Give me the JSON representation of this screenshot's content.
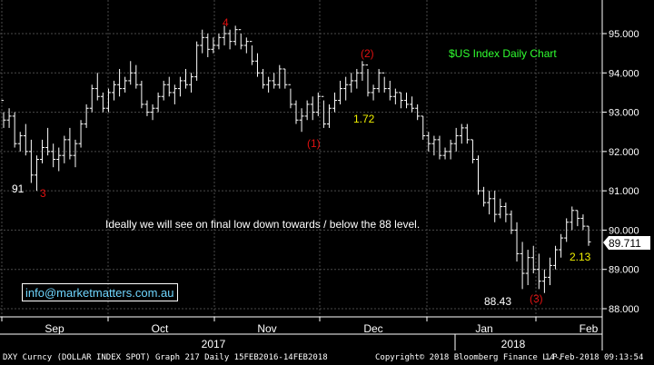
{
  "chart_data": {
    "type": "candlestick",
    "title": "$US Index Daily Chart",
    "ylim": [
      87.75,
      95.55
    ],
    "yticks": [
      "95.000",
      "94.000",
      "93.000",
      "92.000",
      "91.000",
      "90.000",
      "89.000",
      "88.000"
    ],
    "months": [
      "Sep",
      "Oct",
      "Nov",
      "Dec",
      "Jan",
      "Feb"
    ],
    "years": [
      "2017",
      "2018"
    ],
    "last_price": "89.711",
    "grid": true,
    "colors": {
      "bars": "#ffffff",
      "grid": "#4a4a4a",
      "price_box": "#ffffff",
      "red_label": "#e01010",
      "yellow_label": "#f0f000",
      "green_label": "#30ff30"
    },
    "bars": [
      [
        93.3,
        93.0,
        92.6,
        92.8
      ],
      [
        92.8,
        93.1,
        92.6,
        92.9
      ],
      [
        92.9,
        93.0,
        92.1,
        92.2
      ],
      [
        92.2,
        92.5,
        92.0,
        92.4
      ],
      [
        92.4,
        92.7,
        91.9,
        92.0
      ],
      [
        92.0,
        92.3,
        91.2,
        91.4
      ],
      [
        91.4,
        91.9,
        91.0,
        91.8
      ],
      [
        91.8,
        92.3,
        91.7,
        92.1
      ],
      [
        92.1,
        92.6,
        91.9,
        92.0
      ],
      [
        92.0,
        92.2,
        91.6,
        91.8
      ],
      [
        91.8,
        92.1,
        91.5,
        91.9
      ],
      [
        91.9,
        92.4,
        91.7,
        92.3
      ],
      [
        92.3,
        92.6,
        91.8,
        91.9
      ],
      [
        91.9,
        92.3,
        91.6,
        92.2
      ],
      [
        92.2,
        92.8,
        92.1,
        92.7
      ],
      [
        92.7,
        93.2,
        92.6,
        93.1
      ],
      [
        93.1,
        93.7,
        93.0,
        93.6
      ],
      [
        93.6,
        94.0,
        93.3,
        93.4
      ],
      [
        93.4,
        93.5,
        93.0,
        93.1
      ],
      [
        93.1,
        93.6,
        93.0,
        93.5
      ],
      [
        93.5,
        93.8,
        93.3,
        93.7
      ],
      [
        93.7,
        94.1,
        93.4,
        93.6
      ],
      [
        93.6,
        93.9,
        93.5,
        93.8
      ],
      [
        93.8,
        94.3,
        93.7,
        94.0
      ],
      [
        94.0,
        94.2,
        93.6,
        93.7
      ],
      [
        93.7,
        93.8,
        93.1,
        93.2
      ],
      [
        93.2,
        93.3,
        92.9,
        93.0
      ],
      [
        93.0,
        93.2,
        92.8,
        93.1
      ],
      [
        93.1,
        93.5,
        93.0,
        93.4
      ],
      [
        93.4,
        93.8,
        93.3,
        93.7
      ],
      [
        93.7,
        93.9,
        93.4,
        93.5
      ],
      [
        93.5,
        93.7,
        93.2,
        93.6
      ],
      [
        93.6,
        93.9,
        93.4,
        93.8
      ],
      [
        93.8,
        94.1,
        93.6,
        93.7
      ],
      [
        93.7,
        94.0,
        93.5,
        93.9
      ],
      [
        93.9,
        94.8,
        93.8,
        94.7
      ],
      [
        94.7,
        95.1,
        94.5,
        94.9
      ],
      [
        94.9,
        95.0,
        94.4,
        94.6
      ],
      [
        94.6,
        94.9,
        94.5,
        94.7
      ],
      [
        94.7,
        95.0,
        94.6,
        94.9
      ],
      [
        94.9,
        95.2,
        94.7,
        95.0
      ],
      [
        95.0,
        95.1,
        94.6,
        94.8
      ],
      [
        94.8,
        95.2,
        94.7,
        95.1
      ],
      [
        95.1,
        95.0,
        94.6,
        94.7
      ],
      [
        94.7,
        94.9,
        94.5,
        94.8
      ],
      [
        94.8,
        94.7,
        94.2,
        94.3
      ],
      [
        94.3,
        94.5,
        93.9,
        94.0
      ],
      [
        94.0,
        94.1,
        93.6,
        93.7
      ],
      [
        93.7,
        93.9,
        93.5,
        93.8
      ],
      [
        93.8,
        94.0,
        93.6,
        93.7
      ],
      [
        93.7,
        94.2,
        93.6,
        94.1
      ],
      [
        94.1,
        94.1,
        93.6,
        93.7
      ],
      [
        93.7,
        93.6,
        93.1,
        93.2
      ],
      [
        93.2,
        93.3,
        92.7,
        92.8
      ],
      [
        92.8,
        93.1,
        92.5,
        92.9
      ],
      [
        92.9,
        93.3,
        92.8,
        93.2
      ],
      [
        93.2,
        93.4,
        92.8,
        93.0
      ],
      [
        93.0,
        93.5,
        92.9,
        93.4
      ],
      [
        93.4,
        93.3,
        92.6,
        92.7
      ],
      [
        92.7,
        93.2,
        92.6,
        93.1
      ],
      [
        93.1,
        93.5,
        93.0,
        93.3
      ],
      [
        93.3,
        93.8,
        93.2,
        93.6
      ],
      [
        93.6,
        93.9,
        93.3,
        93.7
      ],
      [
        93.7,
        94.0,
        93.5,
        93.8
      ],
      [
        93.8,
        94.1,
        93.6,
        94.0
      ],
      [
        94.0,
        94.3,
        93.8,
        94.2
      ],
      [
        94.2,
        94.1,
        93.4,
        93.5
      ],
      [
        93.5,
        93.7,
        93.3,
        93.6
      ],
      [
        93.6,
        94.1,
        93.5,
        94.0
      ],
      [
        94.0,
        93.9,
        93.5,
        93.6
      ],
      [
        93.6,
        93.8,
        93.3,
        93.4
      ],
      [
        93.4,
        93.6,
        93.2,
        93.5
      ],
      [
        93.5,
        93.5,
        93.1,
        93.3
      ],
      [
        93.3,
        93.5,
        93.1,
        93.2
      ],
      [
        93.2,
        93.4,
        93.0,
        93.1
      ],
      [
        93.1,
        93.2,
        92.8,
        92.9
      ],
      [
        92.9,
        92.9,
        92.3,
        92.4
      ],
      [
        92.4,
        92.5,
        92.0,
        92.2
      ],
      [
        92.2,
        92.4,
        91.9,
        92.3
      ],
      [
        92.3,
        92.4,
        91.8,
        91.9
      ],
      [
        91.9,
        92.1,
        91.8,
        92.0
      ],
      [
        92.0,
        92.3,
        91.8,
        92.2
      ],
      [
        92.2,
        92.6,
        92.0,
        92.4
      ],
      [
        92.4,
        92.7,
        92.2,
        92.6
      ],
      [
        92.6,
        92.7,
        92.2,
        92.3
      ],
      [
        92.3,
        92.3,
        91.7,
        91.8
      ],
      [
        91.8,
        91.9,
        90.9,
        91.0
      ],
      [
        91.0,
        91.1,
        90.6,
        90.7
      ],
      [
        90.7,
        91.0,
        90.4,
        90.8
      ],
      [
        90.8,
        91.0,
        90.2,
        90.4
      ],
      [
        90.4,
        90.8,
        90.3,
        90.6
      ],
      [
        90.6,
        90.7,
        90.2,
        90.4
      ],
      [
        90.4,
        90.5,
        89.9,
        90.0
      ],
      [
        90.0,
        90.2,
        89.2,
        89.4
      ],
      [
        89.4,
        89.7,
        88.5,
        88.9
      ],
      [
        88.9,
        89.5,
        88.6,
        89.3
      ],
      [
        89.3,
        89.6,
        88.9,
        89.0
      ],
      [
        89.0,
        89.4,
        88.5,
        88.7
      ],
      [
        88.7,
        89.0,
        88.4,
        88.8
      ],
      [
        88.8,
        89.3,
        88.6,
        89.1
      ],
      [
        89.1,
        89.6,
        89.0,
        89.5
      ],
      [
        89.5,
        89.9,
        89.3,
        89.8
      ],
      [
        89.8,
        90.3,
        89.7,
        90.2
      ],
      [
        90.2,
        90.6,
        90.0,
        90.5
      ],
      [
        90.5,
        90.5,
        90.1,
        90.3
      ],
      [
        90.3,
        90.4,
        90.0,
        90.1
      ],
      [
        90.1,
        90.1,
        89.6,
        89.7
      ]
    ],
    "annotations": {
      "label_91": "91",
      "label_3_sep": "3",
      "label_4": "4",
      "label_1": "(1)",
      "label_2": "(2)",
      "label_172": "1.72",
      "label_title": "$US Index Daily Chart",
      "label_ideally": "Ideally we will see on final low down towards / below the 88 level.",
      "label_8843": "88.43",
      "label_3_jan": "(3)",
      "label_213": "2.13"
    }
  },
  "email": "info@marketmatters.com.au",
  "footer": {
    "left": "DXY Curncy (DOLLAR INDEX SPOT) Graph 217  Daily 15FEB2016-14FEB2018",
    "mid": "Copyright© 2018 Bloomberg Finance L.P.",
    "right": "14-Feb-2018 09:13:54"
  }
}
